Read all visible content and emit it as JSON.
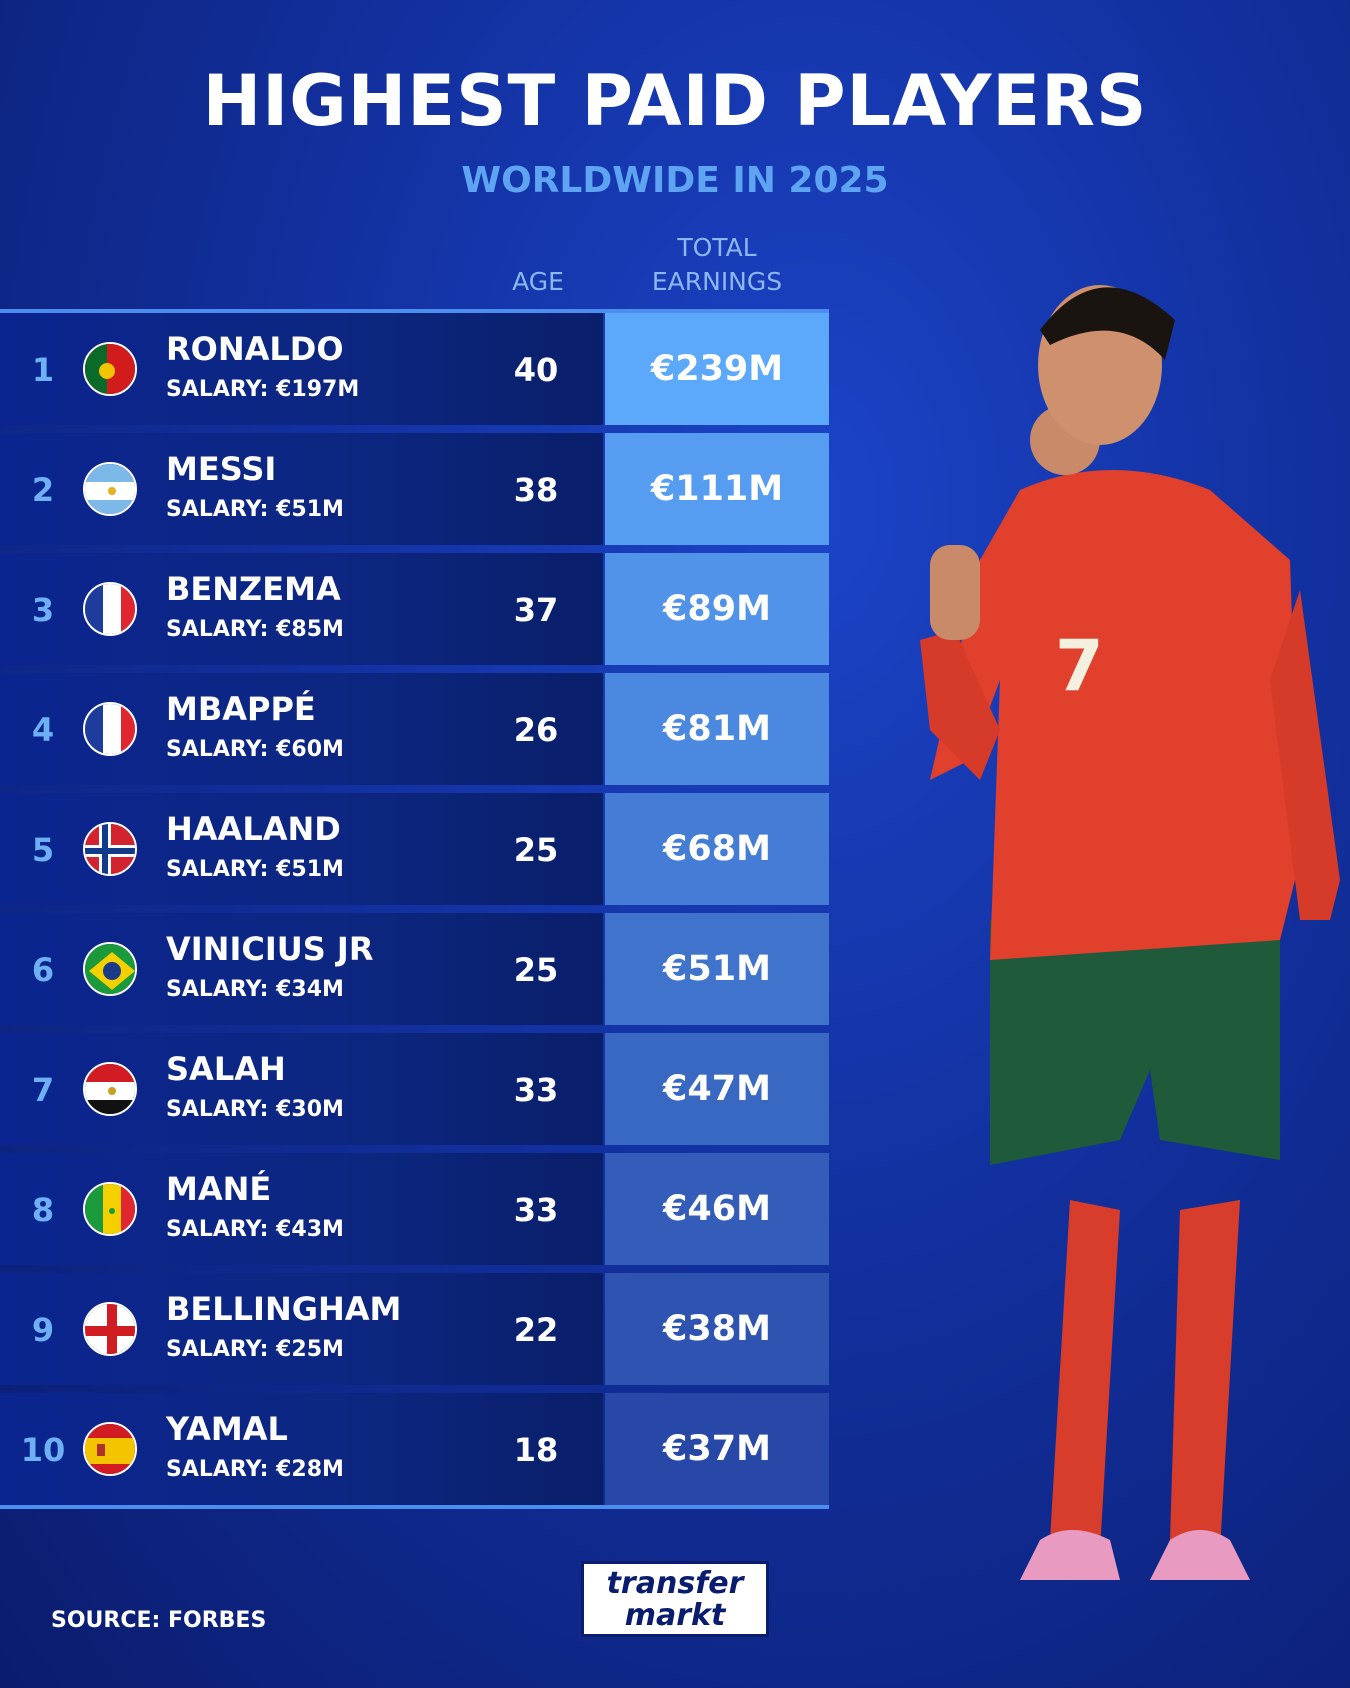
{
  "header": {
    "title": "HIGHEST PAID PLAYERS",
    "subtitle": "WORLDWIDE IN 2025"
  },
  "table": {
    "columns": [
      "AGE",
      "TOTAL EARNINGS"
    ],
    "rows": [
      {
        "rank": 1,
        "name": "RONALDO",
        "salary": "SALARY: €197M",
        "age": 40,
        "earnings": "€239M"
      },
      {
        "rank": 2,
        "name": "MESSI",
        "salary": "SALARY: €51M",
        "age": 38,
        "earnings": "€111M"
      },
      {
        "rank": 3,
        "name": "BENZEMA",
        "salary": "SALARY: €85M",
        "age": 37,
        "earnings": "€89M"
      },
      {
        "rank": 4,
        "name": "MBAPPÉ",
        "salary": "SALARY: €60M",
        "age": 26,
        "earnings": "€81M"
      },
      {
        "rank": 5,
        "name": "HAALAND",
        "salary": "SALARY: €51M",
        "age": 25,
        "earnings": "€68M"
      },
      {
        "rank": 6,
        "name": "VINICIUS JR",
        "salary": "SALARY: €34M",
        "age": 25,
        "earnings": "€51M"
      },
      {
        "rank": 7,
        "name": "SALAH",
        "salary": "SALARY: €30M",
        "age": 33,
        "earnings": "€47M"
      },
      {
        "rank": 8,
        "name": "MANÉ",
        "salary": "SALARY: €43M",
        "age": 33,
        "earnings": "€46M"
      },
      {
        "rank": 9,
        "name": "BELLINGHAM",
        "salary": "SALARY: €25M",
        "age": 22,
        "earnings": "€38M"
      },
      {
        "rank": 10,
        "name": "YAMAL",
        "salary": "SALARY: €28M",
        "age": 18,
        "earnings": "€37M"
      }
    ]
  },
  "footer": {
    "source": "SOURCE: FORBES",
    "logo": [
      "transfer",
      "markt"
    ]
  }
}
